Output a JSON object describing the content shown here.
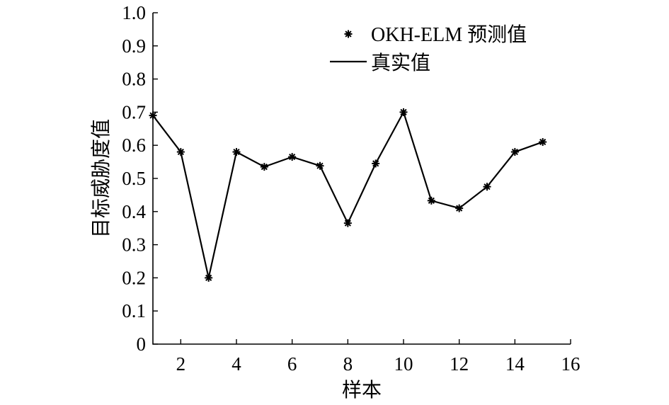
{
  "chart_data": {
    "type": "line",
    "xlabel": "样本",
    "ylabel": "目标威胁度值",
    "xlim": [
      1,
      16
    ],
    "ylim": [
      0,
      1.0
    ],
    "x_ticks": [
      "2",
      "4",
      "6",
      "8",
      "10",
      "12",
      "14",
      "16"
    ],
    "y_ticks": [
      "0",
      "0.1",
      "0.2",
      "0.3",
      "0.4",
      "0.5",
      "0.6",
      "0.7",
      "0.8",
      "0.9",
      "1.0"
    ],
    "x": [
      1,
      2,
      3,
      4,
      5,
      6,
      7,
      8,
      9,
      10,
      11,
      12,
      13,
      14,
      15
    ],
    "series": [
      {
        "name": "OKH-ELM 预测值",
        "style": "markers-asterisk",
        "values": [
          0.69,
          0.58,
          0.2,
          0.58,
          0.535,
          0.565,
          0.538,
          0.365,
          0.545,
          0.7,
          0.433,
          0.41,
          0.475,
          0.58,
          0.61
        ]
      },
      {
        "name": "真实值",
        "style": "solid-line",
        "values": [
          0.69,
          0.58,
          0.2,
          0.58,
          0.535,
          0.565,
          0.538,
          0.365,
          0.545,
          0.7,
          0.433,
          0.41,
          0.475,
          0.58,
          0.61
        ]
      }
    ],
    "legend_position": "top-right",
    "grid": false,
    "colors": {
      "line": "#000000",
      "marker": "#000000"
    }
  }
}
